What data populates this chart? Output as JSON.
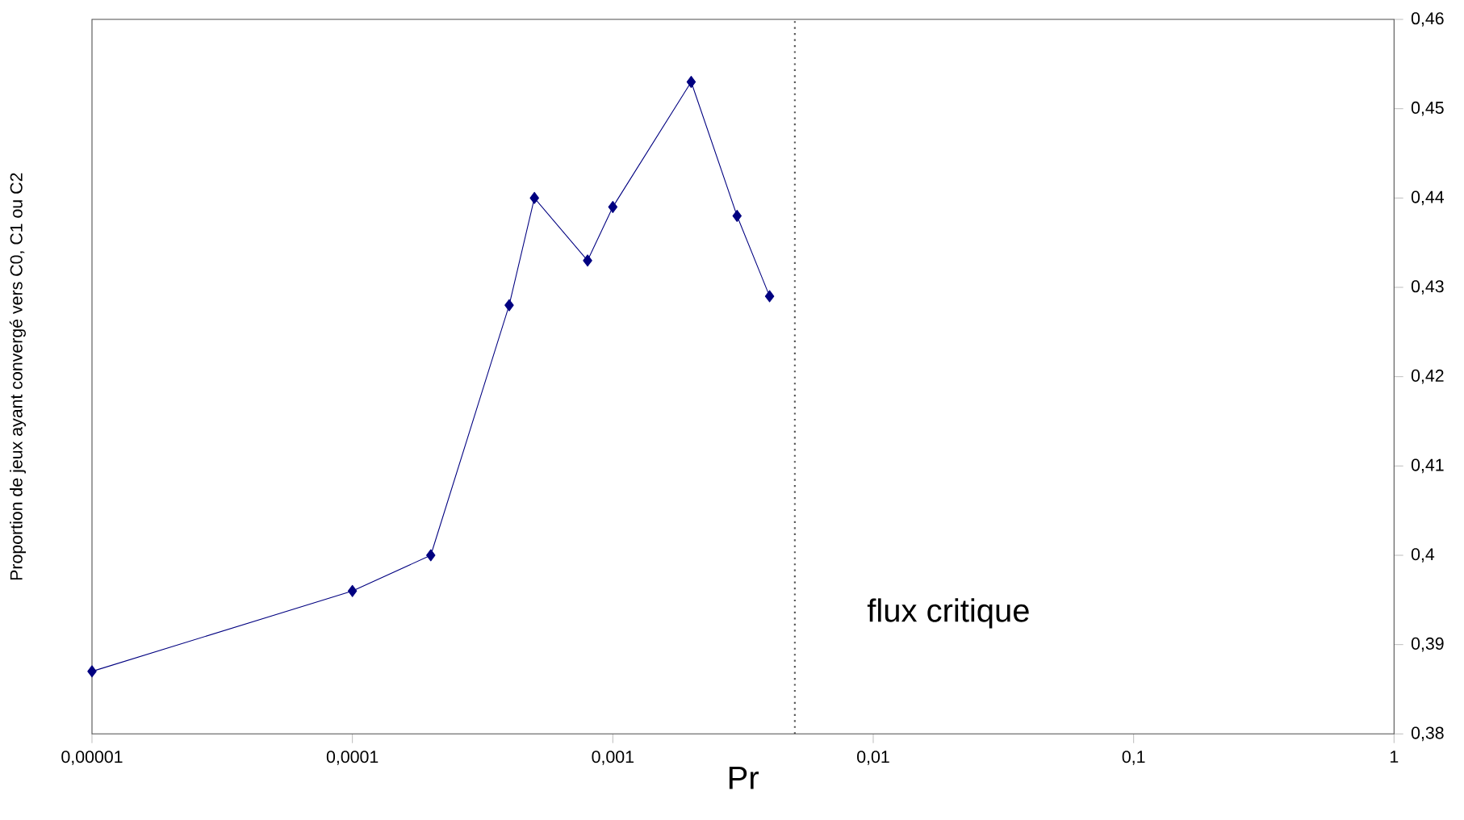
{
  "chart_data": {
    "type": "line",
    "xlabel": "Pr",
    "ylabel": "Proportion de jeux ayant convergé vers C0, C1 ou C2",
    "x": [
      1e-05,
      0.0001,
      0.0002,
      0.0004,
      0.0005,
      0.0008,
      0.001,
      0.002,
      0.003,
      0.004
    ],
    "series": [
      {
        "color": "#000080",
        "values": [
          0.387,
          0.396,
          0.4,
          0.428,
          0.44,
          0.433,
          0.439,
          0.453,
          0.438,
          0.429
        ]
      }
    ],
    "log": "x",
    "marker": "diamond",
    "line_style": "solid",
    "xlim": [
      1e-05,
      1
    ],
    "ylim": [
      0.38,
      0.46
    ],
    "xticks": [
      {
        "value": 1e-05,
        "label": "0,00001"
      },
      {
        "value": 0.0001,
        "label": "0,0001"
      },
      {
        "value": 0.001,
        "label": "0,001"
      },
      {
        "value": 0.01,
        "label": "0,01"
      },
      {
        "value": 0.1,
        "label": "0,1"
      },
      {
        "value": 1,
        "label": "1"
      }
    ],
    "yticks": [
      {
        "value": 0.38,
        "label": "0,38"
      },
      {
        "value": 0.39,
        "label": "0,39"
      },
      {
        "value": 0.4,
        "label": "0,4"
      },
      {
        "value": 0.41,
        "label": "0,41"
      },
      {
        "value": 0.42,
        "label": "0,42"
      },
      {
        "value": 0.43,
        "label": "0,43"
      },
      {
        "value": 0.44,
        "label": "0,44"
      },
      {
        "value": 0.45,
        "label": "0,45"
      },
      {
        "value": 0.46,
        "label": "0,46"
      }
    ],
    "ref_lines": [
      {
        "axis": "x",
        "value": 0.005,
        "label": "flux critique",
        "color": "#555555",
        "line_style": "dotted"
      }
    ]
  }
}
